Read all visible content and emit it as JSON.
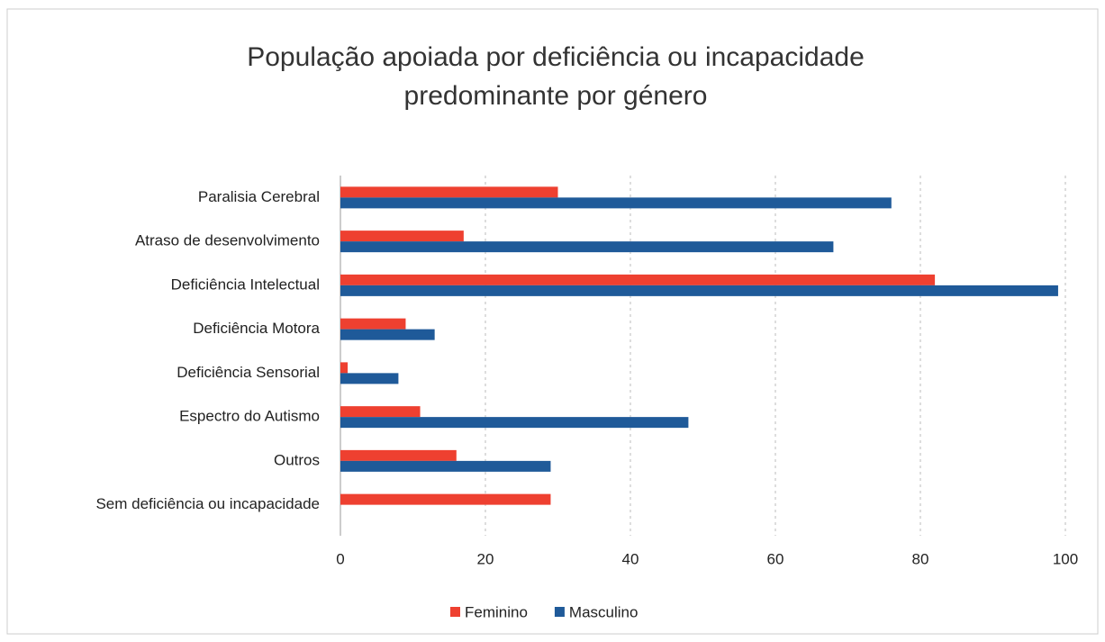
{
  "chart_data": {
    "type": "bar",
    "orientation": "horizontal",
    "title": [
      "População apoiada por deficiência ou incapacidade",
      "predominante por género"
    ],
    "categories": [
      "Paralisia Cerebral",
      "Atraso de desenvolvimento",
      "Deficiência Intelectual",
      "Deficiência Motora",
      "Deficiência Sensorial",
      "Espectro do Autismo",
      "Outros",
      "Sem deficiência ou incapacidade"
    ],
    "series": [
      {
        "name": "Feminino",
        "color": "#ee4030",
        "values": [
          30,
          17,
          82,
          9,
          1,
          11,
          16,
          29
        ]
      },
      {
        "name": "Masculino",
        "color": "#1f5a99",
        "values": [
          76,
          68,
          99,
          13,
          8,
          48,
          29,
          0
        ]
      }
    ],
    "xlim": [
      0,
      100
    ],
    "xticks": [
      0,
      20,
      40,
      60,
      80,
      100
    ],
    "grid": true,
    "legend": "bottom"
  }
}
